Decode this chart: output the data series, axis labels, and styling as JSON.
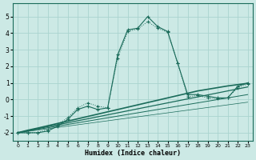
{
  "xlabel": "Humidex (Indice chaleur)",
  "xlim": [
    -0.5,
    23.5
  ],
  "ylim": [
    -2.5,
    5.8
  ],
  "yticks": [
    -2,
    -1,
    0,
    1,
    2,
    3,
    4,
    5
  ],
  "xticks": [
    0,
    1,
    2,
    3,
    4,
    5,
    6,
    7,
    8,
    9,
    10,
    11,
    12,
    13,
    14,
    15,
    16,
    17,
    18,
    19,
    20,
    21,
    22,
    23
  ],
  "background_color": "#cce9e5",
  "grid_color": "#aad4cf",
  "line_color": "#1a6b5a",
  "curve1": [
    -2.0,
    -2.0,
    -2.0,
    -1.9,
    -1.6,
    -1.2,
    -0.6,
    -0.4,
    -0.6,
    -0.5,
    2.7,
    4.2,
    4.3,
    5.0,
    4.4,
    4.1,
    2.2,
    0.3,
    0.3,
    0.2,
    0.1,
    0.1,
    0.8,
    1.0
  ],
  "curve2": [
    -2.0,
    -2.0,
    -2.0,
    -1.8,
    -1.5,
    -1.1,
    -0.5,
    -0.2,
    -0.4,
    -0.5,
    2.5,
    4.1,
    4.25,
    4.7,
    4.3,
    4.05,
    2.2,
    0.15,
    0.25,
    0.1,
    0.05,
    0.1,
    0.7,
    0.95
  ],
  "linear1": [
    -2.0,
    -1.85,
    -1.72,
    -1.58,
    -1.44,
    -1.3,
    -1.16,
    -1.02,
    -0.88,
    -0.74,
    -0.6,
    -0.46,
    -0.32,
    -0.18,
    -0.04,
    0.1,
    0.24,
    0.38,
    0.52,
    0.62,
    0.72,
    0.82,
    0.9,
    0.98
  ],
  "linear2": [
    -2.0,
    -1.88,
    -1.76,
    -1.64,
    -1.52,
    -1.4,
    -1.28,
    -1.16,
    -1.04,
    -0.92,
    -0.8,
    -0.68,
    -0.56,
    -0.44,
    -0.32,
    -0.2,
    -0.08,
    0.04,
    0.16,
    0.28,
    0.4,
    0.52,
    0.64,
    0.76
  ],
  "linear3": [
    -2.0,
    -1.9,
    -1.8,
    -1.7,
    -1.6,
    -1.5,
    -1.4,
    -1.3,
    -1.2,
    -1.1,
    -1.0,
    -0.9,
    -0.8,
    -0.7,
    -0.6,
    -0.5,
    -0.4,
    -0.3,
    -0.2,
    -0.1,
    0.0,
    0.1,
    0.2,
    0.3
  ],
  "linear4": [
    -2.0,
    -1.92,
    -1.84,
    -1.76,
    -1.68,
    -1.6,
    -1.52,
    -1.44,
    -1.36,
    -1.28,
    -1.2,
    -1.12,
    -1.04,
    -0.96,
    -0.88,
    -0.8,
    -0.72,
    -0.64,
    -0.56,
    -0.48,
    -0.4,
    -0.32,
    -0.24,
    -0.16
  ]
}
